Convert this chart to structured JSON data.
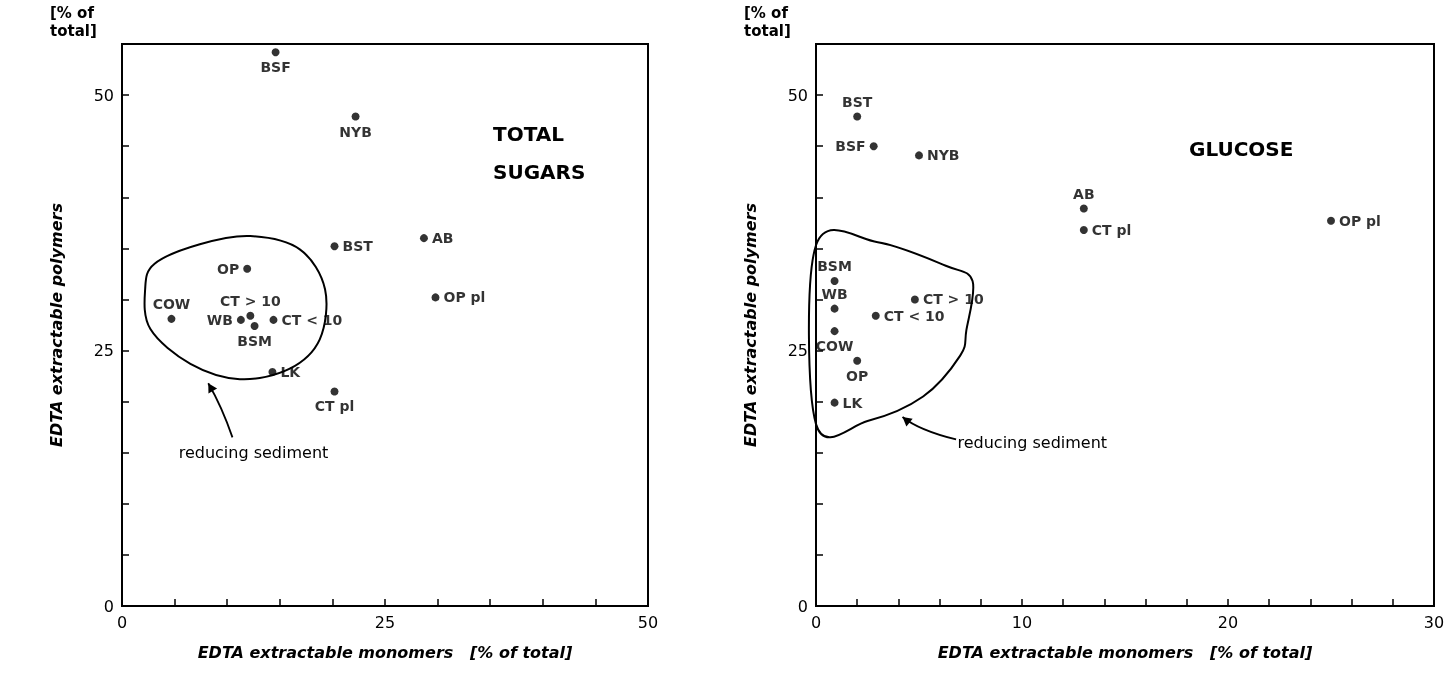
{
  "chart_data": [
    {
      "type": "scatter",
      "title": "TOTAL SUGARS",
      "xlabel": "EDTA extractable monomers   [% of total]",
      "ylabel": "EDTA extractable polymers",
      "annotations": [
        "[% of total]",
        "reducing sediment"
      ],
      "marker": "circle",
      "grid": false,
      "legend": false,
      "xlim": [
        0,
        50
      ],
      "xticks": [
        0,
        {
          "value": 5,
          "label": null
        },
        {
          "value": 10,
          "label": null
        },
        {
          "value": 15,
          "label": null
        },
        {
          "value": 20,
          "label": null
        },
        25,
        {
          "value": 30,
          "label": null
        },
        {
          "value": 35,
          "label": null
        },
        {
          "value": 40,
          "label": null
        },
        {
          "value": 45,
          "label": null
        },
        50
      ],
      "ylim": [
        0,
        55
      ],
      "yticks": [
        0,
        {
          "value": 5,
          "label": null
        },
        {
          "value": 10,
          "label": null
        },
        {
          "value": 15,
          "label": null
        },
        {
          "value": 20,
          "label": null
        },
        25,
        {
          "value": 30,
          "label": null
        },
        {
          "value": 35,
          "label": null
        },
        {
          "value": 40,
          "label": null
        },
        {
          "value": 45,
          "label": null
        },
        50
      ],
      "series": [
        {
          "name": "BSF",
          "color": "#000000",
          "x": [
            14.6
          ],
          "values": [
            54.2
          ]
        },
        {
          "name": "NYB",
          "color": "#000000",
          "x": [
            22.2
          ],
          "values": [
            47.9
          ]
        },
        {
          "name": "BST",
          "color": "#000000",
          "x": [
            20.2
          ],
          "values": [
            35.2
          ]
        },
        {
          "name": "AB",
          "color": "#000000",
          "x": [
            28.7
          ],
          "values": [
            36.0
          ]
        },
        {
          "name": "OP pl",
          "color": "#000000",
          "x": [
            29.8
          ],
          "values": [
            30.2
          ]
        },
        {
          "name": "OP",
          "color": "#000000",
          "x": [
            11.9
          ],
          "values": [
            33.0
          ]
        },
        {
          "name": "COW",
          "color": "#000000",
          "x": [
            4.7
          ],
          "values": [
            28.1
          ]
        },
        {
          "name": "WB",
          "color": "#000000",
          "x": [
            11.3
          ],
          "values": [
            28.0
          ]
        },
        {
          "name": "CT > 10",
          "color": "#000000",
          "x": [
            12.2
          ],
          "values": [
            28.4
          ]
        },
        {
          "name": "BSM",
          "color": "#000000",
          "x": [
            12.6
          ],
          "values": [
            27.4
          ]
        },
        {
          "name": "CT < 10",
          "color": "#000000",
          "x": [
            14.4
          ],
          "values": [
            28.0
          ]
        },
        {
          "name": "LK",
          "color": "#000000",
          "x": [
            14.3
          ],
          "values": [
            22.9
          ]
        },
        {
          "name": "CT pl",
          "color": "#000000",
          "x": [
            20.2
          ],
          "values": [
            21.0
          ]
        }
      ]
    },
    {
      "type": "scatter",
      "title": "GLUCOSE",
      "xlabel": "EDTA extractable monomers   [% of total]",
      "ylabel": "EDTA extractable polymers",
      "annotations": [
        "[% of total]",
        "reducing sediment"
      ],
      "marker": "circle",
      "grid": false,
      "legend": false,
      "xlim": [
        0,
        30
      ],
      "xticks": [
        0,
        {
          "value": 2,
          "label": null
        },
        {
          "value": 4,
          "label": null
        },
        {
          "value": 6,
          "label": null
        },
        {
          "value": 8,
          "label": null
        },
        10,
        {
          "value": 12,
          "label": null
        },
        {
          "value": 14,
          "label": null
        },
        {
          "value": 16,
          "label": null
        },
        {
          "value": 18,
          "label": null
        },
        20,
        {
          "value": 22,
          "label": null
        },
        {
          "value": 24,
          "label": null
        },
        {
          "value": 26,
          "label": null
        },
        {
          "value": 28,
          "label": null
        },
        30
      ],
      "ylim": [
        0,
        55
      ],
      "yticks": [
        0,
        {
          "value": 5,
          "label": null
        },
        {
          "value": 10,
          "label": null
        },
        {
          "value": 15,
          "label": null
        },
        {
          "value": 20,
          "label": null
        },
        25,
        {
          "value": 30,
          "label": null
        },
        {
          "value": 35,
          "label": null
        },
        {
          "value": 40,
          "label": null
        },
        {
          "value": 45,
          "label": null
        },
        50
      ],
      "series": [
        {
          "name": "BST",
          "color": "#000000",
          "x": [
            2.0
          ],
          "values": [
            47.9
          ]
        },
        {
          "name": "BSF",
          "color": "#000000",
          "x": [
            2.8
          ],
          "values": [
            45.0
          ]
        },
        {
          "name": "NYB",
          "color": "#000000",
          "x": [
            5.0
          ],
          "values": [
            44.1
          ]
        },
        {
          "name": "AB",
          "color": "#000000",
          "x": [
            13.0
          ],
          "values": [
            38.9
          ]
        },
        {
          "name": "CT pl",
          "color": "#000000",
          "x": [
            13.0
          ],
          "values": [
            36.8
          ]
        },
        {
          "name": "OP pl",
          "color": "#000000",
          "x": [
            25.0
          ],
          "values": [
            37.7
          ]
        },
        {
          "name": "BSM",
          "color": "#000000",
          "x": [
            0.9
          ],
          "values": [
            31.8
          ]
        },
        {
          "name": "WB",
          "color": "#000000",
          "x": [
            0.9
          ],
          "values": [
            29.1
          ]
        },
        {
          "name": "CT > 10",
          "color": "#000000",
          "x": [
            4.8
          ],
          "values": [
            30.0
          ]
        },
        {
          "name": "CT < 10",
          "color": "#000000",
          "x": [
            2.9
          ],
          "values": [
            28.4
          ]
        },
        {
          "name": "COW",
          "color": "#000000",
          "x": [
            0.9
          ],
          "values": [
            26.9
          ]
        },
        {
          "name": "OP",
          "color": "#000000",
          "x": [
            2.0
          ],
          "values": [
            24.0
          ]
        },
        {
          "name": "LK",
          "color": "#000000",
          "x": [
            0.9
          ],
          "values": [
            19.9
          ]
        }
      ]
    }
  ]
}
